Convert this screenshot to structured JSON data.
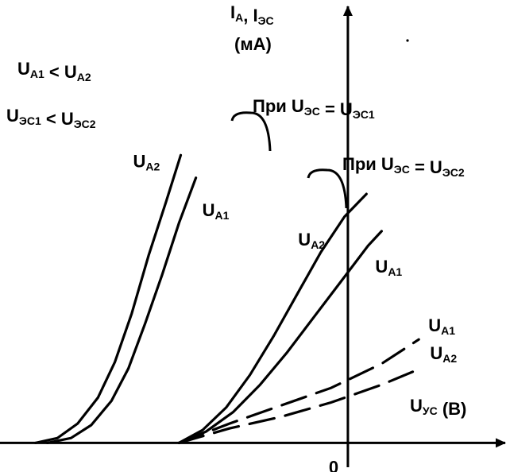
{
  "chart_data": {
    "type": "line",
    "title": "",
    "xlabel": "U",
    "xlabel_sub": "УС",
    "xlabel_unit": " (В)",
    "ylabel_line1_parts": [
      {
        "t": "I"
      },
      {
        "t": "А",
        "sub": true
      },
      {
        "t": ", I"
      },
      {
        "t": "ЭС",
        "sub": true
      }
    ],
    "ylabel_line2": "(мА)",
    "origin_label": "0",
    "conditions": [
      [
        {
          "t": "U"
        },
        {
          "t": "А1",
          "sub": true
        },
        {
          "t": " < U"
        },
        {
          "t": "А2",
          "sub": true
        }
      ],
      [
        {
          "t": "U"
        },
        {
          "t": "ЭС1",
          "sub": true
        },
        {
          "t": " < U"
        },
        {
          "t": "ЭС2",
          "sub": true
        }
      ]
    ],
    "groups": [
      [
        {
          "t": "При U"
        },
        {
          "t": "ЭС",
          "sub": true
        },
        {
          "t": " = U"
        },
        {
          "t": "ЭС1",
          "sub": true
        }
      ],
      [
        {
          "t": "При U"
        },
        {
          "t": "ЭС",
          "sub": true
        },
        {
          "t": " = U"
        },
        {
          "t": "ЭС2",
          "sub": true
        }
      ]
    ],
    "series": [
      {
        "name_parts": [
          {
            "t": "U"
          },
          {
            "t": "А2",
            "sub": true
          }
        ],
        "group": 0,
        "style": "solid",
        "points": [
          [
            -9.25,
            0
          ],
          [
            -8.6,
            0.15
          ],
          [
            -8.0,
            0.6
          ],
          [
            -7.4,
            1.4
          ],
          [
            -6.9,
            2.5
          ],
          [
            -6.4,
            4.0
          ],
          [
            -5.9,
            5.8
          ],
          [
            -5.4,
            7.4
          ],
          [
            -4.95,
            8.9
          ]
        ]
      },
      {
        "name_parts": [
          {
            "t": "U"
          },
          {
            "t": "А1",
            "sub": true
          }
        ],
        "group": 0,
        "style": "solid",
        "points": [
          [
            -8.9,
            0
          ],
          [
            -8.2,
            0.15
          ],
          [
            -7.6,
            0.55
          ],
          [
            -7.0,
            1.3
          ],
          [
            -6.5,
            2.3
          ],
          [
            -6.0,
            3.7
          ],
          [
            -5.5,
            5.2
          ],
          [
            -5.0,
            6.8
          ],
          [
            -4.5,
            8.2
          ]
        ]
      },
      {
        "name_parts": [
          {
            "t": "U"
          },
          {
            "t": "А2",
            "sub": true
          }
        ],
        "group": 1,
        "style": "solid",
        "points": [
          [
            -5.0,
            0
          ],
          [
            -4.3,
            0.4
          ],
          [
            -3.6,
            1.1
          ],
          [
            -2.9,
            2.1
          ],
          [
            -2.2,
            3.3
          ],
          [
            -1.5,
            4.6
          ],
          [
            -0.8,
            5.9
          ],
          [
            -0.1,
            7.0
          ],
          [
            0.55,
            7.7
          ]
        ]
      },
      {
        "name_parts": [
          {
            "t": "U"
          },
          {
            "t": "А1",
            "sub": true
          }
        ],
        "group": 1,
        "style": "solid",
        "points": [
          [
            -5.0,
            0
          ],
          [
            -4.2,
            0.35
          ],
          [
            -3.4,
            0.95
          ],
          [
            -2.6,
            1.8
          ],
          [
            -1.8,
            2.8
          ],
          [
            -1.0,
            3.9
          ],
          [
            -0.2,
            5.0
          ],
          [
            0.6,
            6.1
          ],
          [
            1.0,
            6.55
          ]
        ]
      },
      {
        "name_parts": [
          {
            "t": "U"
          },
          {
            "t": "А1",
            "sub": true
          }
        ],
        "group": null,
        "style": "dashed",
        "points": [
          [
            -5.0,
            0
          ],
          [
            -3.5,
            0.6
          ],
          [
            -2.0,
            1.15
          ],
          [
            -0.5,
            1.7
          ],
          [
            1.0,
            2.45
          ],
          [
            2.1,
            3.2
          ]
        ]
      },
      {
        "name_parts": [
          {
            "t": "U"
          },
          {
            "t": "А2",
            "sub": true
          }
        ],
        "group": null,
        "style": "dashed",
        "points": [
          [
            -5.0,
            0
          ],
          [
            -3.5,
            0.45
          ],
          [
            -2.0,
            0.8
          ],
          [
            -0.5,
            1.25
          ],
          [
            1.0,
            1.8
          ],
          [
            2.15,
            2.3
          ]
        ]
      }
    ],
    "xlim": [
      -10.3,
      4.8
    ],
    "ylim": [
      -0.9,
      13.7
    ],
    "grid": false,
    "legend": "none"
  }
}
